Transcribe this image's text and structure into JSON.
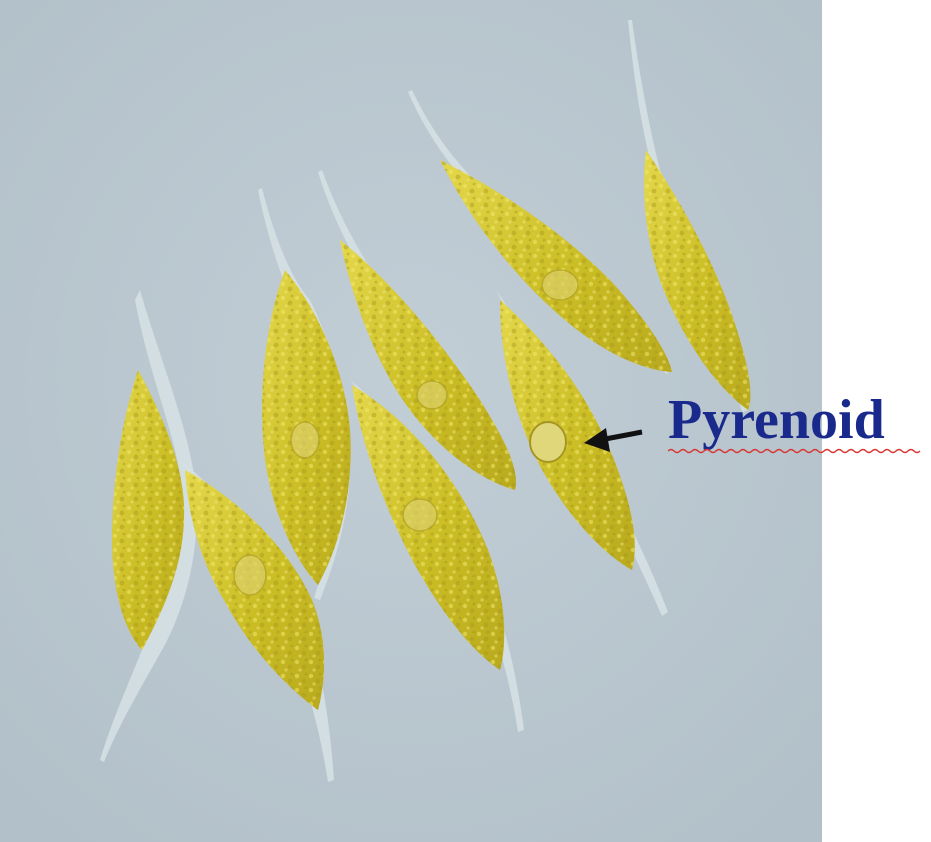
{
  "image": {
    "subject": "green-algae-micrograph",
    "background_color": "#b9c6cf",
    "cell_color": "#cfc22a",
    "cell_highlight": "#e3d84a",
    "spine_color": "#d8e3e6",
    "cell_count": 8
  },
  "annotation": {
    "label": "Pyrenoid",
    "label_color": "#1a2a8c",
    "arrow_color": "#111111",
    "underline_color": "#d9362f"
  }
}
